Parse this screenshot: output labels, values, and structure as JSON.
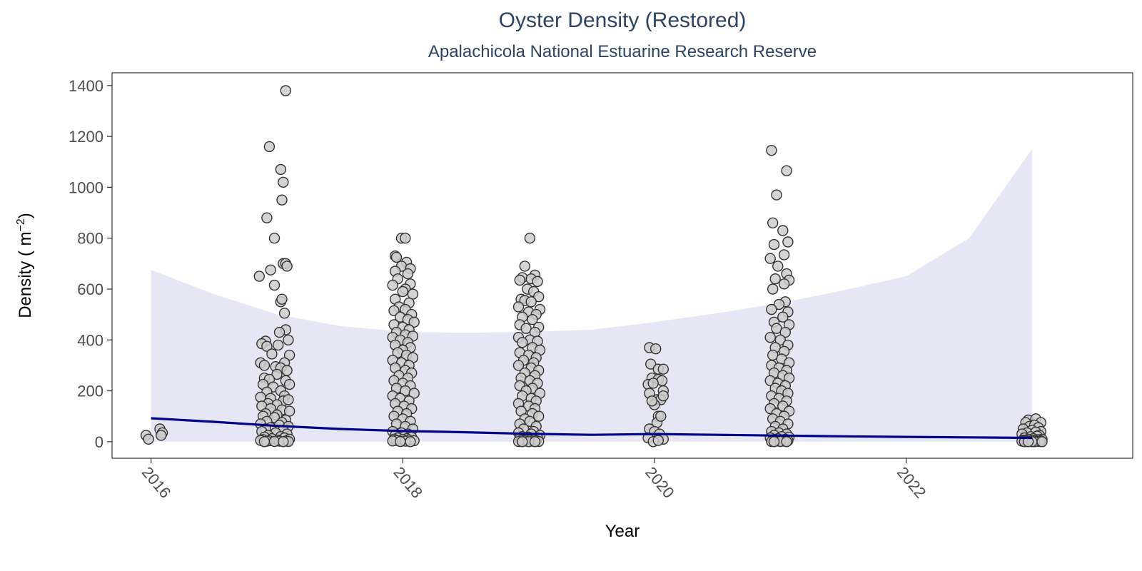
{
  "chart_data": {
    "type": "scatter",
    "title": "Oyster Density (Restored)",
    "subtitle": "Apalachicola National Estuarine Research Reserve",
    "xlabel": "Year",
    "ylabel": "Density ( m",
    "ylabel_superscript": "−2",
    "ylabel_suffix": ")",
    "xlim": [
      2015.69,
      2023.8
    ],
    "ylim": [
      -65,
      1450
    ],
    "x_ticks": [
      2016,
      2018,
      2020,
      2022
    ],
    "y_ticks": [
      0,
      200,
      400,
      600,
      800,
      1000,
      1200,
      1400
    ],
    "grid": false,
    "colors": {
      "point_fill": "#cccccc",
      "point_stroke": "#333333",
      "trend_line": "#00008b",
      "ribbon": "#e6e6f5",
      "panel_border": "#333333"
    },
    "trend": {
      "x": [
        2016.0,
        2016.5,
        2017.0,
        2017.5,
        2018.0,
        2018.5,
        2019.0,
        2019.5,
        2020.0,
        2020.5,
        2021.0,
        2021.5,
        2022.0,
        2022.5,
        2023.0
      ],
      "y": [
        92,
        78,
        62,
        50,
        42,
        37,
        31,
        27,
        30,
        27,
        24,
        21,
        19,
        17,
        15
      ],
      "upper": [
        675,
        580,
        500,
        455,
        432,
        428,
        432,
        440,
        470,
        505,
        545,
        595,
        650,
        800,
        1150
      ],
      "lower": [
        0,
        0,
        0,
        0,
        0,
        0,
        0,
        0,
        0,
        0,
        0,
        0,
        0,
        0,
        0
      ]
    },
    "series": [
      {
        "x": [
          2015.96,
          2015.98,
          2016.07,
          2016.09,
          2016.08
        ],
        "y": [
          25,
          10,
          50,
          35,
          25
        ]
      },
      {
        "x": [
          2017.07,
          2016.94,
          2017.03,
          2017.05,
          2017.04,
          2016.92,
          2016.98,
          2017.05,
          2017.07,
          2017.08,
          2016.86,
          2016.95,
          2016.98,
          2017.03,
          2017.04,
          2017.06,
          2016.91,
          2017.07,
          2017.09,
          2017.02,
          2016.88,
          2016.92,
          2017.01,
          2017.1,
          2016.87,
          2016.96,
          2017.06,
          2016.9,
          2016.99,
          2017.03,
          2017.08,
          2016.9,
          2017.0,
          2016.94,
          2017.07,
          2017.1,
          2016.89,
          2016.97,
          2017.03,
          2016.92,
          2017.06,
          2016.87,
          2016.95,
          2017.05,
          2017.09,
          2016.93,
          2017.0,
          2016.88,
          2016.95,
          2017.04,
          2017.1,
          2016.91,
          2017.0,
          2016.89,
          2016.98,
          2017.07,
          2016.92,
          2017.04,
          2016.87,
          2017.02,
          2017.09,
          2016.95,
          2016.91,
          2017.05,
          2016.88,
          2016.99,
          2017.08,
          2016.93,
          2017.03,
          2016.9,
          2017.06,
          2016.96,
          2017.1,
          2016.89,
          2017.01,
          2016.87,
          2016.94,
          2017.07,
          2016.92,
          2017.02,
          2016.98,
          2017.09,
          2016.9,
          2017.05
        ],
        "y": [
          1380,
          1160,
          1070,
          1020,
          950,
          880,
          800,
          700,
          700,
          690,
          650,
          675,
          615,
          550,
          560,
          505,
          395,
          440,
          400,
          430,
          385,
          375,
          380,
          340,
          310,
          345,
          310,
          300,
          295,
          290,
          280,
          250,
          265,
          245,
          240,
          225,
          225,
          215,
          200,
          195,
          180,
          175,
          170,
          160,
          165,
          150,
          145,
          140,
          130,
          125,
          120,
          110,
          105,
          100,
          95,
          85,
          80,
          75,
          70,
          65,
          60,
          55,
          50,
          45,
          40,
          35,
          30,
          25,
          20,
          18,
          15,
          12,
          10,
          8,
          6,
          5,
          4,
          3,
          2,
          2,
          1,
          1,
          0,
          0
        ]
      },
      {
        "x": [
          2017.99,
          2018.02,
          2017.94,
          2017.95,
          2018.03,
          2017.99,
          2018.06,
          2017.94,
          2018.04,
          2017.96,
          2018.06,
          2017.92,
          2018.02,
          2018.0,
          2018.08,
          2017.94,
          2018.05,
          2017.97,
          2018.02,
          2017.93,
          2018.07,
          2017.98,
          2018.04,
          2018.09,
          2017.93,
          2018.0,
          2018.05,
          2017.95,
          2018.02,
          2018.08,
          2017.92,
          2017.98,
          2018.04,
          2017.94,
          2018.06,
          2018.0,
          2017.96,
          2018.03,
          2018.08,
          2017.92,
          2017.99,
          2018.05,
          2017.94,
          2018.02,
          2018.07,
          2017.97,
          2018.04,
          2017.93,
          2018.0,
          2018.06,
          2017.95,
          2018.02,
          2018.09,
          2017.92,
          2017.98,
          2018.05,
          2017.94,
          2018.01,
          2018.07,
          2017.96,
          2018.03,
          2017.93,
          2018.0,
          2018.06,
          2017.95,
          2018.02,
          2018.08,
          2017.92,
          2017.99,
          2018.04,
          2017.94,
          2018.01,
          2018.07,
          2017.96,
          2018.03,
          2017.93,
          2018.0,
          2018.05,
          2017.95,
          2018.09,
          2017.92,
          2018.02,
          2017.98,
          2018.06
        ],
        "y": [
          800,
          800,
          730,
          725,
          705,
          690,
          680,
          670,
          660,
          640,
          620,
          615,
          600,
          590,
          580,
          560,
          545,
          530,
          520,
          515,
          500,
          490,
          480,
          470,
          460,
          450,
          440,
          430,
          420,
          415,
          410,
          400,
          390,
          380,
          370,
          360,
          350,
          340,
          330,
          320,
          310,
          300,
          290,
          280,
          270,
          260,
          250,
          240,
          230,
          220,
          210,
          200,
          190,
          180,
          170,
          160,
          150,
          140,
          130,
          120,
          110,
          100,
          90,
          80,
          70,
          60,
          50,
          40,
          35,
          30,
          25,
          20,
          18,
          15,
          12,
          10,
          8,
          6,
          5,
          4,
          3,
          2,
          1,
          0
        ]
      },
      {
        "x": [
          2019.01,
          2018.97,
          2019.05,
          2018.95,
          2019.02,
          2018.93,
          2019.07,
          2018.99,
          2019.04,
          2018.94,
          2019.08,
          2018.97,
          2019.02,
          2019.09,
          2018.92,
          2019.0,
          2019.06,
          2018.95,
          2019.03,
          2018.93,
          2019.08,
          2018.98,
          2019.05,
          2018.92,
          2019.01,
          2019.07,
          2018.95,
          2019.03,
          2019.09,
          2018.93,
          2019.0,
          2019.06,
          2018.96,
          2019.04,
          2018.92,
          2019.02,
          2019.08,
          2018.97,
          2019.05,
          2018.94,
          2019.01,
          2019.07,
          2018.93,
          2019.03,
          2018.98,
          2019.09,
          2018.95,
          2019.02,
          2019.06,
          2018.92,
          2019.0,
          2019.05,
          2018.94,
          2019.03,
          2019.08,
          2018.97,
          2019.01,
          2018.93,
          2019.06,
          2018.96,
          2019.04,
          2018.92,
          2019.02,
          2019.09,
          2018.95,
          2019.0,
          2019.07,
          2018.93,
          2019.04,
          2018.98,
          2019.01,
          2018.94,
          2019.06,
          2018.97,
          2019.03,
          2018.92,
          2019.08,
          2019.0,
          2018.95,
          2019.05
        ],
        "y": [
          800,
          690,
          655,
          645,
          640,
          635,
          630,
          600,
          590,
          560,
          570,
          555,
          550,
          520,
          530,
          510,
          500,
          490,
          480,
          460,
          450,
          445,
          430,
          410,
          400,
          395,
          390,
          370,
          360,
          350,
          340,
          330,
          320,
          310,
          300,
          290,
          280,
          270,
          260,
          250,
          240,
          230,
          220,
          210,
          200,
          190,
          180,
          170,
          160,
          150,
          140,
          130,
          120,
          110,
          100,
          90,
          80,
          70,
          60,
          50,
          40,
          35,
          30,
          25,
          20,
          18,
          15,
          12,
          10,
          8,
          6,
          5,
          4,
          3,
          2,
          1,
          1,
          0,
          0,
          0
        ]
      },
      {
        "x": [
          2019.96,
          2020.01,
          2019.97,
          2020.03,
          2020.07,
          2019.98,
          2020.03,
          2020.06,
          2019.95,
          2020.07,
          2019.99,
          2020.02,
          2020.05,
          2019.96,
          2020.07,
          2020.0,
          2020.03,
          2019.98,
          2020.02,
          2020.05,
          2019.96,
          2020.0,
          2020.04,
          2019.95,
          2020.07,
          2019.99,
          2020.03
        ],
        "y": [
          370,
          365,
          305,
          285,
          285,
          250,
          245,
          240,
          225,
          200,
          230,
          165,
          165,
          190,
          180,
          145,
          100,
          160,
          75,
          100,
          50,
          40,
          30,
          15,
          10,
          0,
          5
        ]
      },
      {
        "x": [
          2020.93,
          2021.05,
          2020.97,
          2020.94,
          2021.02,
          2021.06,
          2020.95,
          2021.03,
          2020.92,
          2020.98,
          2021.05,
          2020.96,
          2021.07,
          2021.03,
          2020.94,
          2021.04,
          2020.99,
          2020.93,
          2021.06,
          2021.02,
          2020.95,
          2021.07,
          2020.97,
          2021.04,
          2020.92,
          2021.0,
          2021.06,
          2020.96,
          2021.03,
          2020.94,
          2021.01,
          2021.07,
          2020.93,
          2020.99,
          2021.05,
          2020.95,
          2021.02,
          2021.07,
          2020.92,
          2020.98,
          2021.04,
          2020.96,
          2021.01,
          2021.06,
          2020.93,
          2020.99,
          2021.05,
          2020.95,
          2021.02,
          2020.92,
          2021.07,
          2020.97,
          2021.03,
          2020.94,
          2021.0,
          2021.06,
          2020.96,
          2021.02,
          2020.93,
          2020.99,
          2021.05,
          2020.95,
          2021.01,
          2021.07,
          2020.92,
          2020.98,
          2021.04,
          2020.96,
          2021.0,
          2020.94,
          2021.06,
          2020.97,
          2021.03,
          2020.93,
          2021.0,
          2021.05,
          2020.95
        ],
        "y": [
          1145,
          1065,
          970,
          860,
          830,
          785,
          775,
          735,
          720,
          690,
          660,
          640,
          635,
          620,
          600,
          550,
          540,
          520,
          510,
          490,
          470,
          460,
          445,
          430,
          410,
          400,
          380,
          370,
          355,
          340,
          325,
          310,
          300,
          290,
          280,
          270,
          260,
          250,
          240,
          230,
          220,
          210,
          200,
          190,
          180,
          170,
          160,
          150,
          140,
          130,
          120,
          110,
          100,
          90,
          80,
          70,
          60,
          50,
          40,
          35,
          30,
          25,
          20,
          18,
          15,
          12,
          10,
          8,
          6,
          5,
          4,
          3,
          2,
          1,
          1,
          0,
          0
        ]
      },
      {
        "x": [
          2022.97,
          2023.03,
          2022.95,
          2023.07,
          2022.98,
          2023.02,
          2023.05,
          2022.93,
          2023.0,
          2023.07,
          2022.96,
          2023.03,
          2022.92,
          2023.06,
          2022.99,
          2023.04,
          2022.94,
          2023.01,
          2023.08,
          2022.97,
          2023.05,
          2022.93,
          2023.02,
          2022.95,
          2023.07,
          2023.0,
          2022.98,
          2023.04,
          2022.92,
          2023.06,
          2022.96,
          2023.02,
          2022.94,
          2023.08,
          2023.0,
          2022.97
        ],
        "y": [
          85,
          90,
          75,
          75,
          60,
          65,
          55,
          50,
          45,
          40,
          35,
          38,
          30,
          25,
          20,
          22,
          15,
          12,
          10,
          10,
          8,
          6,
          5,
          5,
          4,
          3,
          3,
          2,
          2,
          1,
          1,
          0,
          0,
          0,
          0,
          0
        ]
      }
    ]
  }
}
